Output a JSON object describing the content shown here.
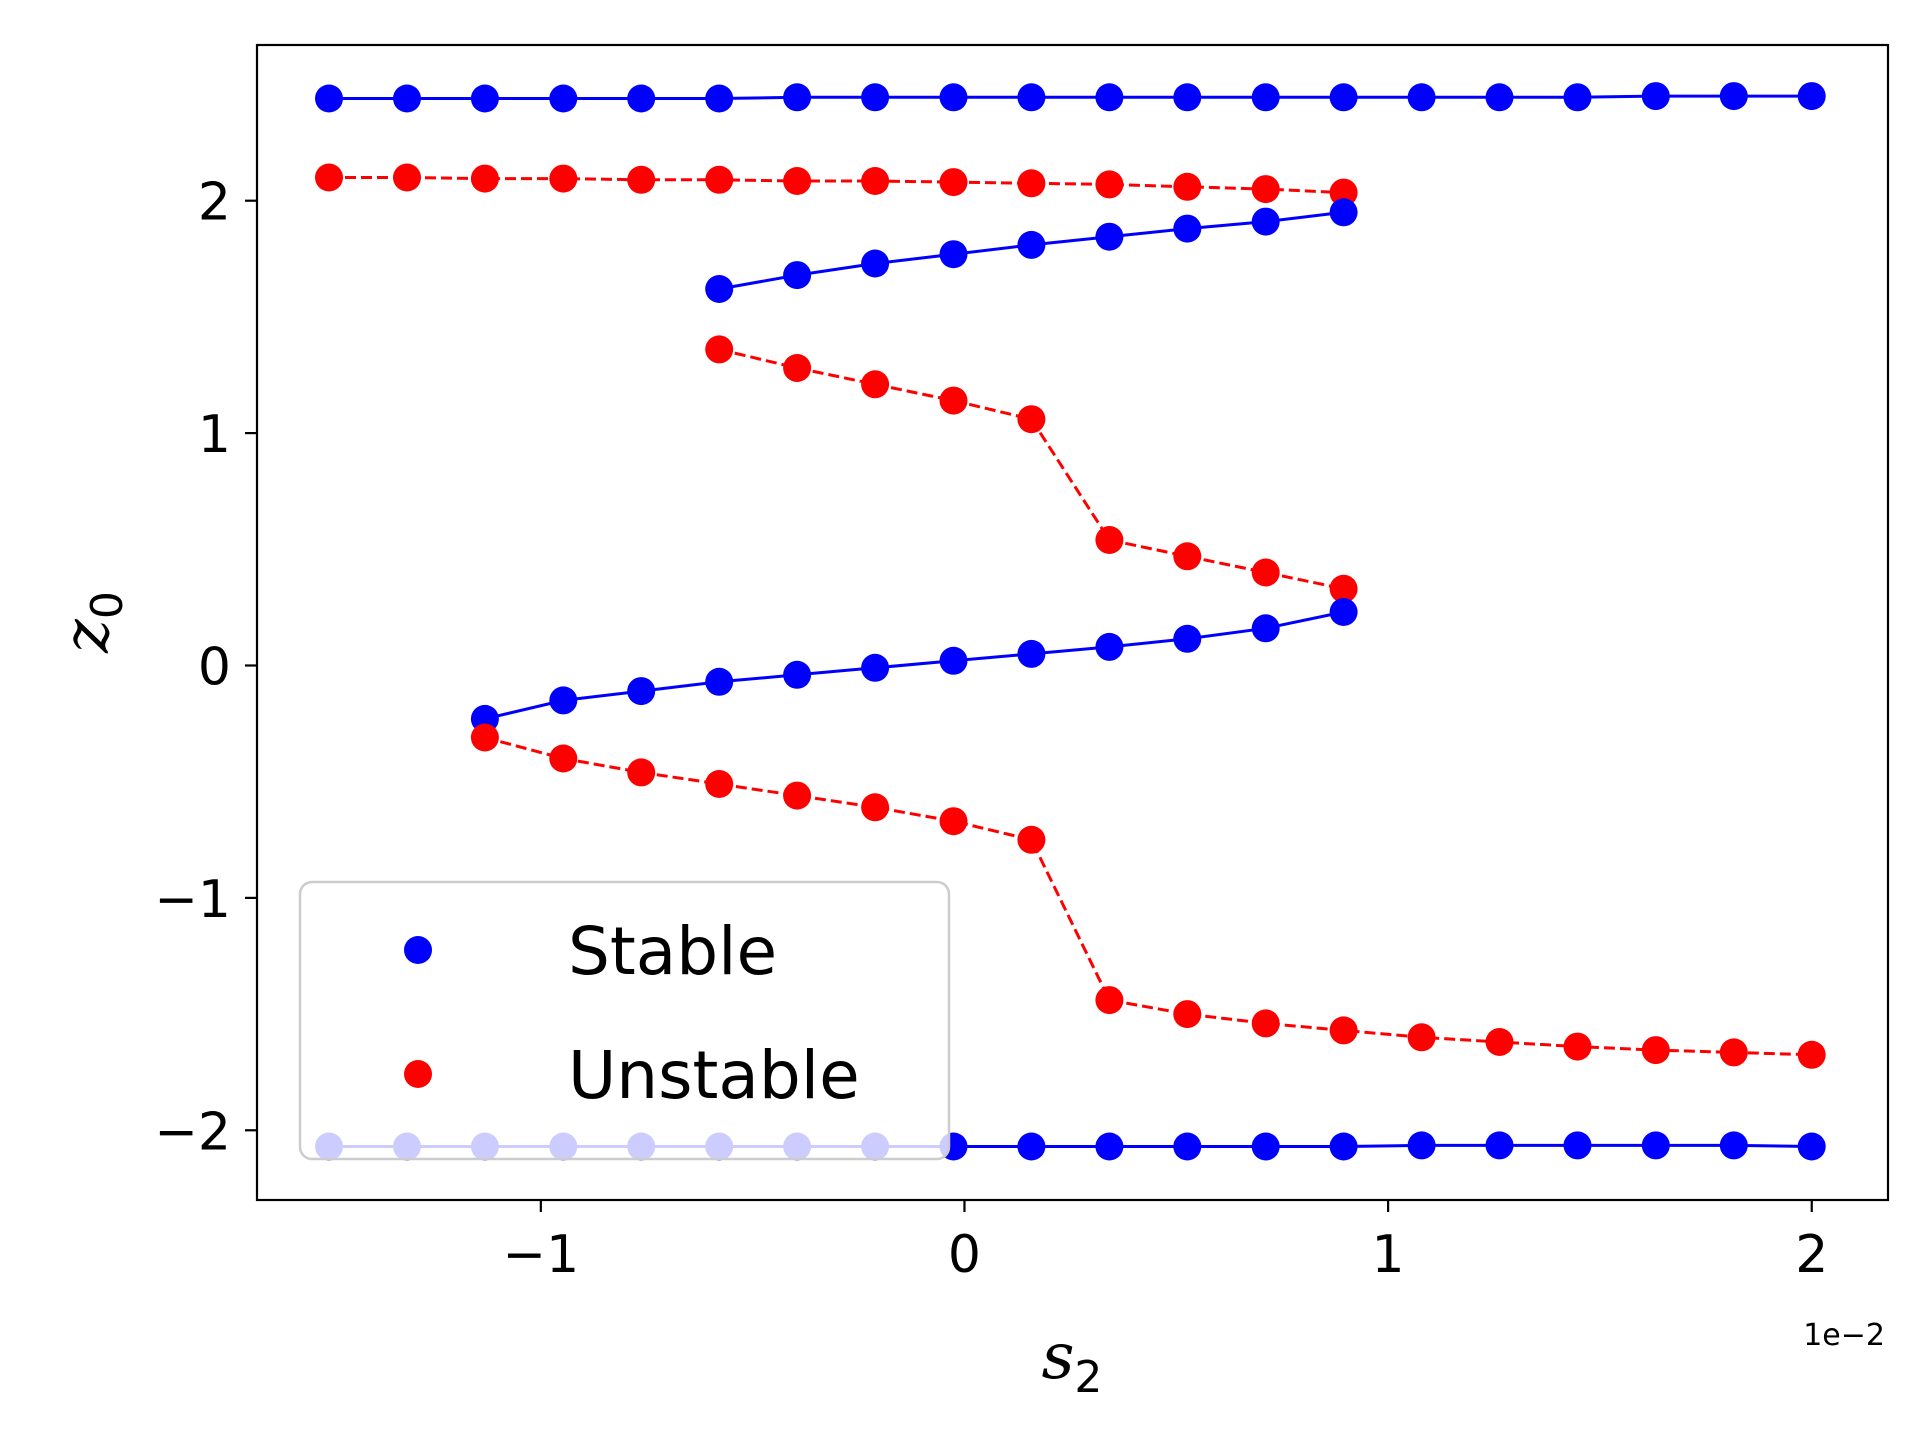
{
  "chart_data": {
    "type": "line",
    "xlabel": {
      "main": "s",
      "sub": "2"
    },
    "ylabel": {
      "main": "z",
      "sub": "0"
    },
    "x_offset_text": "1e−2",
    "x_scale": 0.01,
    "xlim": [
      -1.67,
      2.18
    ],
    "ylim": [
      -2.3,
      2.67
    ],
    "x_ticks": [
      {
        "value": -1,
        "label": "−1"
      },
      {
        "value": 0,
        "label": "0"
      },
      {
        "value": 1,
        "label": "1"
      },
      {
        "value": 2,
        "label": "2"
      }
    ],
    "y_ticks": [
      {
        "value": -2,
        "label": "−2"
      },
      {
        "value": -1,
        "label": "−1"
      },
      {
        "value": 0,
        "label": "0"
      },
      {
        "value": 1,
        "label": "1"
      },
      {
        "value": 2,
        "label": "2"
      }
    ],
    "grid": false,
    "legend": {
      "position": "lower-left",
      "entries": [
        {
          "label": "Stable",
          "color": "#0000ff"
        },
        {
          "label": "Unstable",
          "color": "#ff0000"
        }
      ]
    },
    "series": [
      {
        "kind": "Stable",
        "color": "#0000ff",
        "linestyle": "solid",
        "x": [
          -1.5,
          -1.316,
          -1.132,
          -0.947,
          -0.763,
          -0.579,
          -0.395,
          -0.211,
          -0.026,
          0.158,
          0.342,
          0.526,
          0.711,
          0.895,
          1.079,
          1.263,
          1.447,
          1.632,
          1.816,
          2.0
        ],
        "y": [
          2.44,
          2.44,
          2.44,
          2.44,
          2.44,
          2.44,
          2.445,
          2.445,
          2.445,
          2.445,
          2.445,
          2.445,
          2.445,
          2.445,
          2.445,
          2.445,
          2.445,
          2.45,
          2.45,
          2.45
        ]
      },
      {
        "kind": "Unstable",
        "color": "#ff0000",
        "linestyle": "dashed",
        "x": [
          -1.5,
          -1.316,
          -1.132,
          -0.947,
          -0.763,
          -0.579,
          -0.395,
          -0.211,
          -0.026,
          0.158,
          0.342,
          0.526,
          0.711,
          0.895
        ],
        "y": [
          2.1,
          2.1,
          2.095,
          2.095,
          2.09,
          2.09,
          2.085,
          2.085,
          2.08,
          2.075,
          2.07,
          2.06,
          2.05,
          2.035
        ]
      },
      {
        "kind": "Stable",
        "color": "#0000ff",
        "linestyle": "solid",
        "x": [
          -0.579,
          -0.395,
          -0.211,
          -0.026,
          0.158,
          0.342,
          0.526,
          0.711,
          0.895
        ],
        "y": [
          1.62,
          1.68,
          1.73,
          1.77,
          1.81,
          1.845,
          1.88,
          1.91,
          1.95
        ]
      },
      {
        "kind": "Unstable",
        "color": "#ff0000",
        "linestyle": "dashed",
        "x": [
          -0.579,
          -0.395,
          -0.211,
          -0.026,
          0.158,
          0.342,
          0.526,
          0.711,
          0.895
        ],
        "y": [
          1.36,
          1.28,
          1.21,
          1.14,
          1.06,
          0.54,
          0.47,
          0.4,
          0.33
        ]
      },
      {
        "kind": "Stable",
        "color": "#0000ff",
        "linestyle": "solid",
        "x": [
          -1.132,
          -0.947,
          -0.763,
          -0.579,
          -0.395,
          -0.211,
          -0.026,
          0.158,
          0.342,
          0.526,
          0.711,
          0.895
        ],
        "y": [
          -0.23,
          -0.15,
          -0.11,
          -0.07,
          -0.04,
          -0.01,
          0.02,
          0.05,
          0.08,
          0.115,
          0.16,
          0.23
        ]
      },
      {
        "kind": "Unstable",
        "color": "#ff0000",
        "linestyle": "dashed",
        "x": [
          -1.132,
          -0.947,
          -0.763,
          -0.579,
          -0.395,
          -0.211,
          -0.026,
          0.158,
          0.342,
          0.526,
          0.711,
          0.895,
          1.079,
          1.263,
          1.447,
          1.632,
          1.816,
          2.0
        ],
        "y": [
          -0.31,
          -0.4,
          -0.46,
          -0.51,
          -0.56,
          -0.61,
          -0.67,
          -0.75,
          -1.44,
          -1.5,
          -1.54,
          -1.57,
          -1.6,
          -1.62,
          -1.64,
          -1.655,
          -1.665,
          -1.675
        ]
      },
      {
        "kind": "Stable",
        "color": "#0000ff",
        "linestyle": "solid",
        "x": [
          -1.5,
          -1.316,
          -1.132,
          -0.947,
          -0.763,
          -0.579,
          -0.395,
          -0.211,
          -0.026,
          0.158,
          0.342,
          0.526,
          0.711,
          0.895,
          1.079,
          1.263,
          1.447,
          1.632,
          1.816,
          2.0
        ],
        "y": [
          -2.07,
          -2.07,
          -2.07,
          -2.07,
          -2.07,
          -2.07,
          -2.07,
          -2.07,
          -2.07,
          -2.07,
          -2.07,
          -2.07,
          -2.07,
          -2.07,
          -2.065,
          -2.065,
          -2.065,
          -2.065,
          -2.065,
          -2.07
        ]
      }
    ]
  }
}
